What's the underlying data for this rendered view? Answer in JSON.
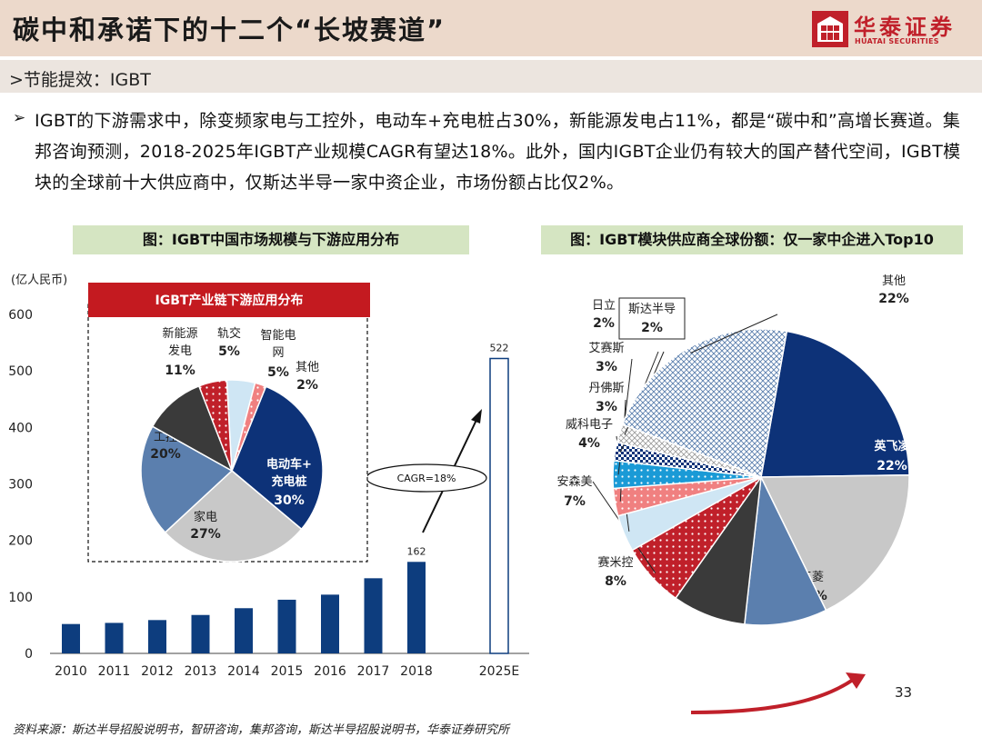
{
  "page": {
    "title": "碳中和承诺下的十二个“长坡赛道”",
    "section": ">节能提效：IGBT",
    "bullet": "IGBT的下游需求中，除变频家电与工控外，电动车+充电桩占30%，新能源发电占11%，都是“碳中和”高增长赛道。集邦咨询预测，2018-2025年IGBT产业规模CAGR有望达18%。此外，国内IGBT企业仍有较大的国产替代空间，IGBT模块的全球前十大供应商中，仅斯达半导一家中资企业，市场份额占比仅2%。",
    "page_number": "33",
    "source": "资料来源：斯达半导招股说明书，智研咨询，集邦咨询，斯达半导招股说明书，华泰证券研究所",
    "logo": {
      "cn": "华泰证券",
      "en": "HUATAI SECURITIES",
      "color": "#c0202a"
    }
  },
  "chart_data": [
    {
      "type": "bar",
      "title": "图：IGBT中国市场规模与下游应用分布",
      "ylabel": "(亿人民币)",
      "categories": [
        "2010",
        "2011",
        "2012",
        "2013",
        "2014",
        "2015",
        "2016",
        "2017",
        "2018",
        "2025E"
      ],
      "values": [
        52,
        54,
        59,
        68,
        80,
        95,
        104,
        133,
        162,
        522
      ],
      "data_labels": {
        "2018": "162",
        "2025E": "522"
      },
      "ylim": [
        0,
        600
      ],
      "yticks": [
        "0",
        "100",
        "200",
        "300",
        "400",
        "500",
        "600"
      ],
      "annotation": "CAGR=18%",
      "colors": {
        "bar": "#0d3d7e",
        "projected": "#ffffff"
      }
    },
    {
      "type": "pie",
      "title": "IGBT产业链下游应用分布",
      "slices": [
        {
          "label": "电动车+充电桩",
          "value": 30,
          "text": "30%",
          "color": "#0d3278"
        },
        {
          "label": "家电",
          "value": 27,
          "text": "27%",
          "color": "#c8c8c8"
        },
        {
          "label": "工控",
          "value": 20,
          "text": "20%",
          "color": "#5b7fae"
        },
        {
          "label": "新能源发电",
          "value": 11,
          "text": "11%",
          "color": "#3a3a3a"
        },
        {
          "label": "轨交",
          "value": 5,
          "text": "5%",
          "color": "#c0202a"
        },
        {
          "label": "智能电网",
          "value": 5,
          "text": "5%",
          "color": "#cfe6f4"
        },
        {
          "label": "其他",
          "value": 2,
          "text": "2%",
          "color": "#f08080"
        }
      ]
    },
    {
      "type": "pie",
      "title": "图：IGBT模块供应商全球份额：仅一家中企进入Top10",
      "slices": [
        {
          "label": "英飞凌",
          "value": 22,
          "text": "22%",
          "color": "#0d3278"
        },
        {
          "label": "三菱",
          "value": 18,
          "text": "18%",
          "color": "#c8c8c8"
        },
        {
          "label": "富士电机",
          "value": 9,
          "text": "9%",
          "color": "#5b7fae"
        },
        {
          "label": "赛米控",
          "value": 8,
          "text": "8%",
          "color": "#3a3a3a"
        },
        {
          "label": "安森美",
          "value": 7,
          "text": "7%",
          "color": "#c0202a"
        },
        {
          "label": "威科电子",
          "value": 4,
          "text": "4%",
          "color": "#cfe6f4"
        },
        {
          "label": "丹佛斯",
          "value": 3,
          "text": "3%",
          "color": "#f08080"
        },
        {
          "label": "艾赛斯",
          "value": 3,
          "text": "3%",
          "color": "#1a9ad6"
        },
        {
          "label": "斯达半导",
          "value": 2,
          "text": "2%",
          "color": "#0d3278"
        },
        {
          "label": "日立",
          "value": 2,
          "text": "2%",
          "color": "#c8c8c8"
        },
        {
          "label": "其他",
          "value": 22,
          "text": "22%",
          "color": "#ffffff"
        }
      ]
    }
  ]
}
